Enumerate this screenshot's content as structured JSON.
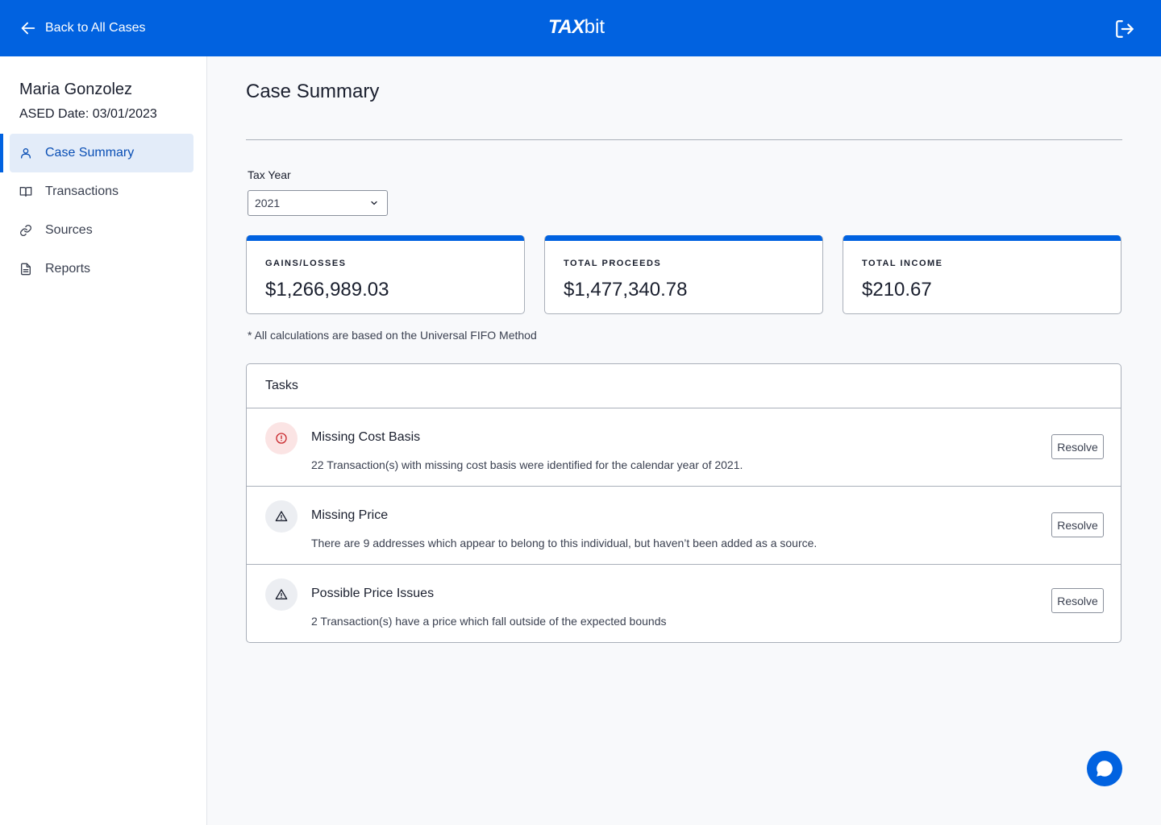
{
  "header": {
    "back_label": "Back to All Cases",
    "logo_bold": "TAX",
    "logo_light": "bit",
    "icons": {
      "back": "arrow-left-icon",
      "logout": "logout-icon"
    },
    "background": "#0162e0"
  },
  "sidebar": {
    "client_name": "Maria Gonzolez",
    "ased_date": "ASED Date: 03/01/2023",
    "items": [
      {
        "label": "Case Summary",
        "icon": "user-icon",
        "active": true
      },
      {
        "label": "Transactions",
        "icon": "book-icon",
        "active": false
      },
      {
        "label": "Sources",
        "icon": "link-icon",
        "active": false
      },
      {
        "label": "Reports",
        "icon": "document-icon",
        "active": false
      }
    ]
  },
  "main": {
    "title": "Case Summary",
    "tax_year": {
      "label": "Tax Year",
      "value": "2021"
    },
    "stats": [
      {
        "label": "GAINS/LOSSES",
        "value": "$1,266,989.03"
      },
      {
        "label": "TOTAL PROCEEDS",
        "value": "$1,477,340.78"
      },
      {
        "label": "TOTAL INCOME",
        "value": "$210.67"
      }
    ],
    "note": "* All calculations are based on the Universal FIFO Method",
    "tasks": {
      "title": "Tasks",
      "items": [
        {
          "title": "Missing Cost Basis",
          "description": "22 Transaction(s) with missing cost basis were identified for the calendar year of 2021.",
          "severity": "error",
          "icon": "alert-circle-icon",
          "action": "Resolve"
        },
        {
          "title": "Missing Price",
          "description": "There are 9 addresses which appear to belong to this individual, but haven’t been added as a source.",
          "severity": "warning",
          "icon": "warning-triangle-icon",
          "action": "Resolve"
        },
        {
          "title": "Possible Price Issues",
          "description": "2 Transaction(s) have a price which fall outside of the expected bounds",
          "severity": "warning",
          "icon": "warning-triangle-icon",
          "action": "Resolve"
        }
      ]
    }
  },
  "colors": {
    "accent": "#0162e0",
    "active_nav_bg": "#e3ecf9",
    "error_icon": "#c8262b",
    "error_bg": "#fbe4e4"
  },
  "chat": {
    "icon": "chat-bubble-icon"
  }
}
